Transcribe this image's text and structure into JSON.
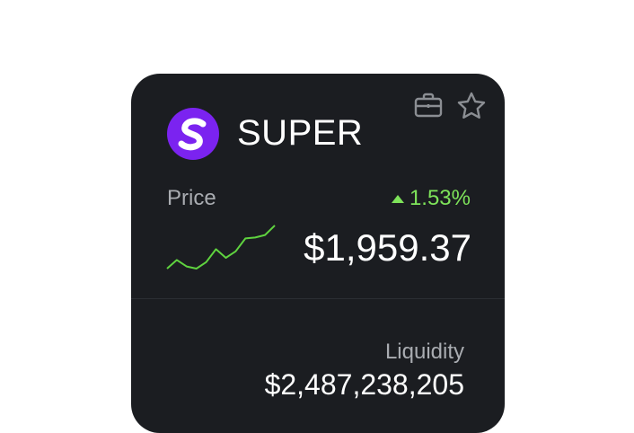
{
  "token": {
    "symbol": "SUPER",
    "logo_icon": "super-s-logo",
    "logo_color": "#7b23f0"
  },
  "actions": {
    "portfolio_icon": "briefcase-icon",
    "watchlist_icon": "star-icon"
  },
  "price": {
    "label": "Price",
    "value": "$1,959.37",
    "change": "1.53%",
    "change_direction": "up",
    "change_color": "#7ee35a",
    "sparkline": [
      0.0,
      0.2,
      0.05,
      0.0,
      0.15,
      0.45,
      0.25,
      0.4,
      0.7,
      0.72,
      0.78,
      1.0
    ]
  },
  "liquidity": {
    "label": "Liquidity",
    "value": "$2,487,238,205"
  },
  "colors": {
    "card_background": "#1b1d21",
    "text_primary": "#ffffff",
    "text_secondary": "#a9acb1"
  }
}
